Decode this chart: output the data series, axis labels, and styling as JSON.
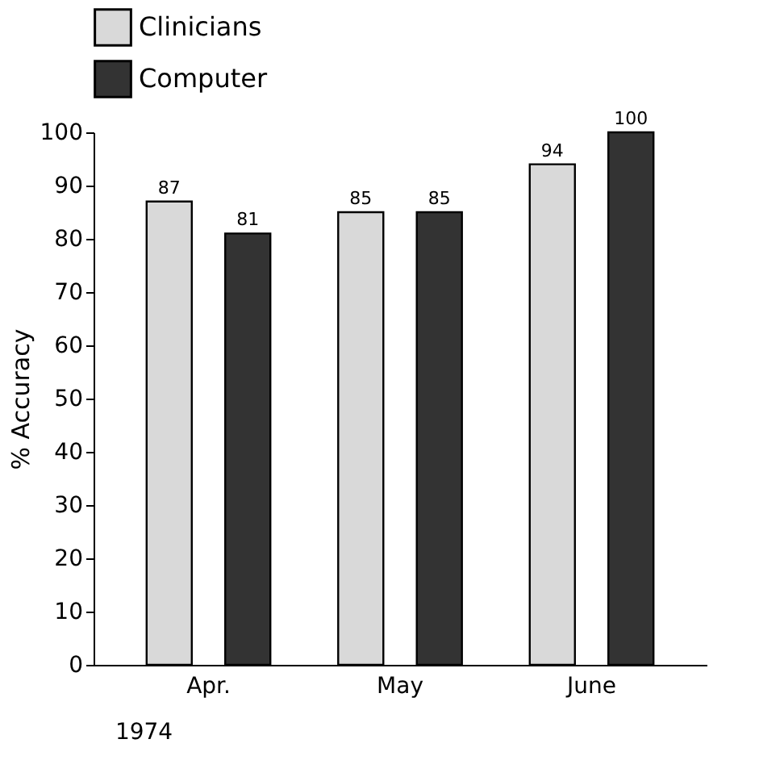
{
  "chart_data": {
    "type": "bar",
    "ylabel": "% Accuracy",
    "categories": [
      "Apr.",
      "May",
      "June"
    ],
    "series": [
      {
        "name": "Clinicians",
        "color": "#d9d9d9",
        "values": [
          87,
          85,
          94
        ]
      },
      {
        "name": "Computer",
        "color": "#333333",
        "values": [
          81,
          85,
          100
        ]
      }
    ],
    "ylim": [
      0,
      100
    ],
    "yticks": [
      0,
      10,
      20,
      30,
      40,
      50,
      60,
      70,
      80,
      90,
      100
    ],
    "data_labels": true,
    "grid": false,
    "legend": "top",
    "annotations": [
      "1974"
    ]
  }
}
